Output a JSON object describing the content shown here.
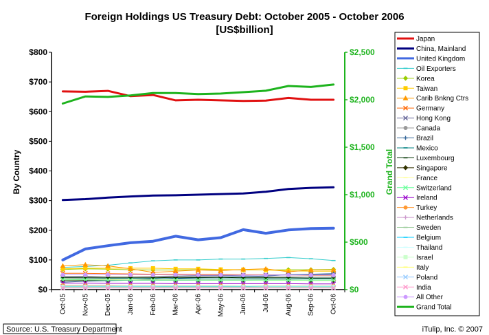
{
  "chart_data": {
    "type": "line",
    "title": "Foreign Holdings US Treasury Debt: October 2005 - October 2006",
    "subtitle": "[US$billion]",
    "ylabel_left": "By Country",
    "ylabel_right": "Grand Total",
    "ylim_left": [
      0,
      800
    ],
    "ylim_right": [
      0,
      2500
    ],
    "yticks_left": [
      "$0",
      "$100",
      "$200",
      "$300",
      "$400",
      "$500",
      "$600",
      "$700",
      "$800"
    ],
    "yticks_right": [
      "$0",
      "$500",
      "$1,000",
      "$1,500",
      "$2,000",
      "$2,500"
    ],
    "categories": [
      "Oct-05",
      "Nov-05",
      "Dec-05",
      "Jan-06",
      "Feb-06",
      "Mar-06",
      "Apr-06",
      "May-06",
      "Jun-06",
      "Jul-06",
      "Aug-06",
      "Sep-06",
      "Oct-06"
    ],
    "legend_position": "right",
    "grid": false,
    "series": [
      {
        "name": "Japan",
        "axis": "left",
        "color": "#e01010",
        "width": 3,
        "marker": "none",
        "values": [
          668,
          667,
          670,
          652,
          656,
          638,
          640,
          638,
          636,
          637,
          646,
          640,
          640
        ]
      },
      {
        "name": "China, Mainland",
        "axis": "left",
        "color": "#000080",
        "width": 3,
        "marker": "none",
        "values": [
          302,
          305,
          310,
          314,
          317,
          318,
          320,
          322,
          324,
          330,
          339,
          343,
          345
        ]
      },
      {
        "name": "United Kingdom",
        "axis": "left",
        "color": "#4169e1",
        "width": 4,
        "marker": "none",
        "values": [
          100,
          137,
          148,
          158,
          163,
          180,
          168,
          175,
          202,
          190,
          201,
          206,
          207
        ]
      },
      {
        "name": "Oil Exporters",
        "axis": "left",
        "color": "#33cccc",
        "width": 1,
        "marker": "dash",
        "values": [
          75,
          78,
          82,
          90,
          97,
          100,
          100,
          103,
          103,
          105,
          108,
          104,
          98
        ]
      },
      {
        "name": "Korea",
        "axis": "left",
        "color": "#99cc00",
        "width": 1,
        "marker": "diamond",
        "values": [
          68,
          70,
          69,
          67,
          66,
          66,
          67,
          67,
          66,
          66,
          67,
          67,
          68
        ]
      },
      {
        "name": "Taiwan",
        "axis": "left",
        "color": "#ffcc00",
        "width": 1,
        "marker": "square",
        "values": [
          70,
          72,
          72,
          72,
          72,
          70,
          70,
          68,
          67,
          66,
          63,
          62,
          62
        ]
      },
      {
        "name": "Carib Bnkng Ctrs",
        "axis": "left",
        "color": "#ff9900",
        "width": 1,
        "marker": "triangle",
        "values": [
          80,
          84,
          80,
          70,
          58,
          62,
          66,
          64,
          68,
          70,
          60,
          66,
          66
        ]
      },
      {
        "name": "Germany",
        "axis": "left",
        "color": "#ff6600",
        "width": 1,
        "marker": "x",
        "values": [
          55,
          55,
          54,
          53,
          52,
          52,
          51,
          51,
          50,
          50,
          49,
          48,
          48
        ]
      },
      {
        "name": "Hong Kong",
        "axis": "left",
        "color": "#666699",
        "width": 1,
        "marker": "x",
        "values": [
          42,
          43,
          44,
          44,
          45,
          46,
          47,
          47,
          48,
          49,
          50,
          51,
          51
        ]
      },
      {
        "name": "Canada",
        "axis": "left",
        "color": "#999999",
        "width": 1,
        "marker": "circle",
        "values": [
          45,
          45,
          44,
          44,
          44,
          43,
          43,
          43,
          43,
          43,
          43,
          42,
          42
        ]
      },
      {
        "name": "Brazil",
        "axis": "left",
        "color": "#336699",
        "width": 1,
        "marker": "plus",
        "values": [
          25,
          28,
          30,
          32,
          35,
          38,
          40,
          42,
          44,
          46,
          50,
          52,
          54
        ]
      },
      {
        "name": "Mexico",
        "axis": "left",
        "color": "#008080",
        "width": 1,
        "marker": "dash",
        "values": [
          36,
          36,
          37,
          37,
          37,
          36,
          36,
          36,
          36,
          36,
          36,
          36,
          36
        ]
      },
      {
        "name": "Luxembourg",
        "axis": "left",
        "color": "#003300",
        "width": 1,
        "marker": "dash",
        "values": [
          40,
          40,
          40,
          40,
          40,
          41,
          41,
          41,
          40,
          40,
          40,
          39,
          39
        ]
      },
      {
        "name": "Singapore",
        "axis": "left",
        "color": "#333300",
        "width": 1,
        "marker": "diamond",
        "values": [
          30,
          31,
          32,
          32,
          32,
          32,
          32,
          32,
          32,
          32,
          32,
          31,
          31
        ]
      },
      {
        "name": "France",
        "axis": "left",
        "color": "#ffff99",
        "width": 1,
        "marker": "dash",
        "values": [
          35,
          34,
          34,
          33,
          33,
          33,
          32,
          32,
          32,
          31,
          31,
          31,
          31
        ]
      },
      {
        "name": "Switzerland",
        "axis": "left",
        "color": "#66ff99",
        "width": 1,
        "marker": "x",
        "values": [
          33,
          33,
          32,
          32,
          32,
          32,
          32,
          32,
          32,
          32,
          32,
          32,
          32
        ]
      },
      {
        "name": "Ireland",
        "axis": "left",
        "color": "#9900cc",
        "width": 1,
        "marker": "x",
        "values": [
          22,
          22,
          21,
          21,
          21,
          20,
          20,
          20,
          20,
          20,
          20,
          19,
          19
        ]
      },
      {
        "name": "Turkey",
        "axis": "left",
        "color": "#ff9933",
        "width": 1,
        "marker": "circle",
        "values": [
          15,
          15,
          15,
          14,
          14,
          14,
          14,
          14,
          13,
          13,
          13,
          13,
          13
        ]
      },
      {
        "name": "Netherlands",
        "axis": "left",
        "color": "#cc99cc",
        "width": 1,
        "marker": "plus",
        "values": [
          14,
          14,
          14,
          13,
          13,
          13,
          13,
          13,
          12,
          12,
          12,
          12,
          12
        ]
      },
      {
        "name": "Sweden",
        "axis": "left",
        "color": "#99cc99",
        "width": 1,
        "marker": "dash",
        "values": [
          12,
          12,
          12,
          12,
          12,
          11,
          11,
          11,
          11,
          11,
          11,
          11,
          11
        ]
      },
      {
        "name": "Belgium",
        "axis": "left",
        "color": "#00ccff",
        "width": 1,
        "marker": "dash",
        "values": [
          10,
          10,
          10,
          10,
          10,
          10,
          10,
          10,
          10,
          10,
          10,
          10,
          10
        ]
      },
      {
        "name": "Thailand",
        "axis": "left",
        "color": "#ccffff",
        "width": 1,
        "marker": "dash",
        "values": [
          13,
          13,
          13,
          13,
          13,
          13,
          13,
          13,
          13,
          12,
          12,
          12,
          12
        ]
      },
      {
        "name": "Israel",
        "axis": "left",
        "color": "#ccffcc",
        "width": 1,
        "marker": "square",
        "values": [
          9,
          9,
          9,
          9,
          9,
          9,
          9,
          9,
          9,
          9,
          9,
          9,
          9
        ]
      },
      {
        "name": "Italy",
        "axis": "left",
        "color": "#ffff66",
        "width": 1,
        "marker": "dash",
        "values": [
          8,
          8,
          8,
          8,
          8,
          8,
          8,
          8,
          8,
          8,
          8,
          8,
          8
        ]
      },
      {
        "name": "Poland",
        "axis": "left",
        "color": "#99ccff",
        "width": 1,
        "marker": "x",
        "values": [
          7,
          7,
          7,
          7,
          7,
          7,
          7,
          7,
          7,
          7,
          7,
          7,
          7
        ]
      },
      {
        "name": "India",
        "axis": "left",
        "color": "#ff99cc",
        "width": 1,
        "marker": "x",
        "values": [
          5,
          5,
          5,
          5,
          5,
          5,
          5,
          5,
          5,
          5,
          5,
          5,
          5
        ]
      },
      {
        "name": "All Other",
        "axis": "left",
        "color": "#cc99ff",
        "width": 1,
        "marker": "circle",
        "values": [
          50,
          50,
          50,
          50,
          50,
          50,
          49,
          49,
          49,
          49,
          49,
          49,
          49
        ]
      },
      {
        "name": "Grand Total",
        "axis": "right",
        "color": "#1db31d",
        "width": 3,
        "marker": "none",
        "values": [
          1960,
          2035,
          2030,
          2045,
          2070,
          2070,
          2060,
          2065,
          2080,
          2095,
          2145,
          2135,
          2160
        ]
      }
    ]
  },
  "footer": {
    "source": "Source: U.S. Treasury Department",
    "credit": "iTulip, Inc. © 2007"
  }
}
